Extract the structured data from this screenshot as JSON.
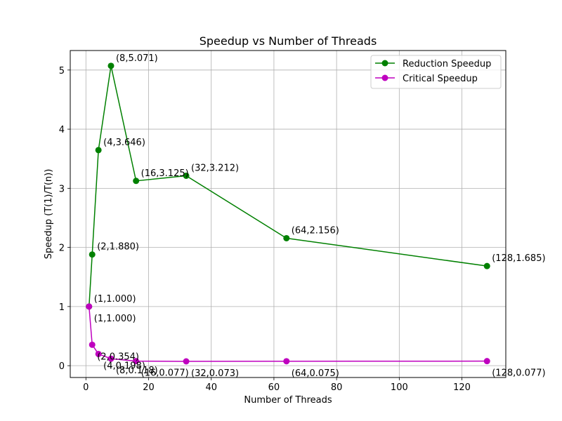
{
  "chart_data": {
    "type": "line",
    "title": "Speedup vs Number of Threads",
    "xlabel": "Number of Threads",
    "ylabel": "Speedup (T(1)/T(n))",
    "xlim": [
      -5,
      134
    ],
    "ylim": [
      -0.2,
      5.33
    ],
    "xticks": [
      0,
      20,
      40,
      60,
      80,
      100,
      120
    ],
    "yticks": [
      0,
      1,
      2,
      3,
      4,
      5
    ],
    "grid": true,
    "legend_position": "top-right",
    "series": [
      {
        "name": "Reduction Speedup",
        "color": "#008000",
        "x": [
          1,
          2,
          4,
          8,
          16,
          32,
          64,
          128
        ],
        "y": [
          1.0,
          1.88,
          3.646,
          5.071,
          3.125,
          3.212,
          2.156,
          1.685
        ],
        "labels": [
          "(1,1.000)",
          "(2,1.880)",
          "(4,3.646)",
          "(8,5.071)",
          "(16,3.125)",
          "(32,3.212)",
          "(64,2.156)",
          "(128,1.685)"
        ]
      },
      {
        "name": "Critical Speedup",
        "color": "#bf00bf",
        "x": [
          1,
          2,
          4,
          8,
          16,
          32,
          64,
          128
        ],
        "y": [
          1.0,
          0.354,
          0.198,
          0.118,
          0.077,
          0.073,
          0.075,
          0.077
        ],
        "labels": [
          "(1,1.000)",
          "(2,0.354)",
          "(4,0.198)",
          "(8,0.118)",
          "(16,0.077)",
          "(32,0.073)",
          "(64,0.075)",
          "(128,0.077)"
        ]
      }
    ]
  }
}
